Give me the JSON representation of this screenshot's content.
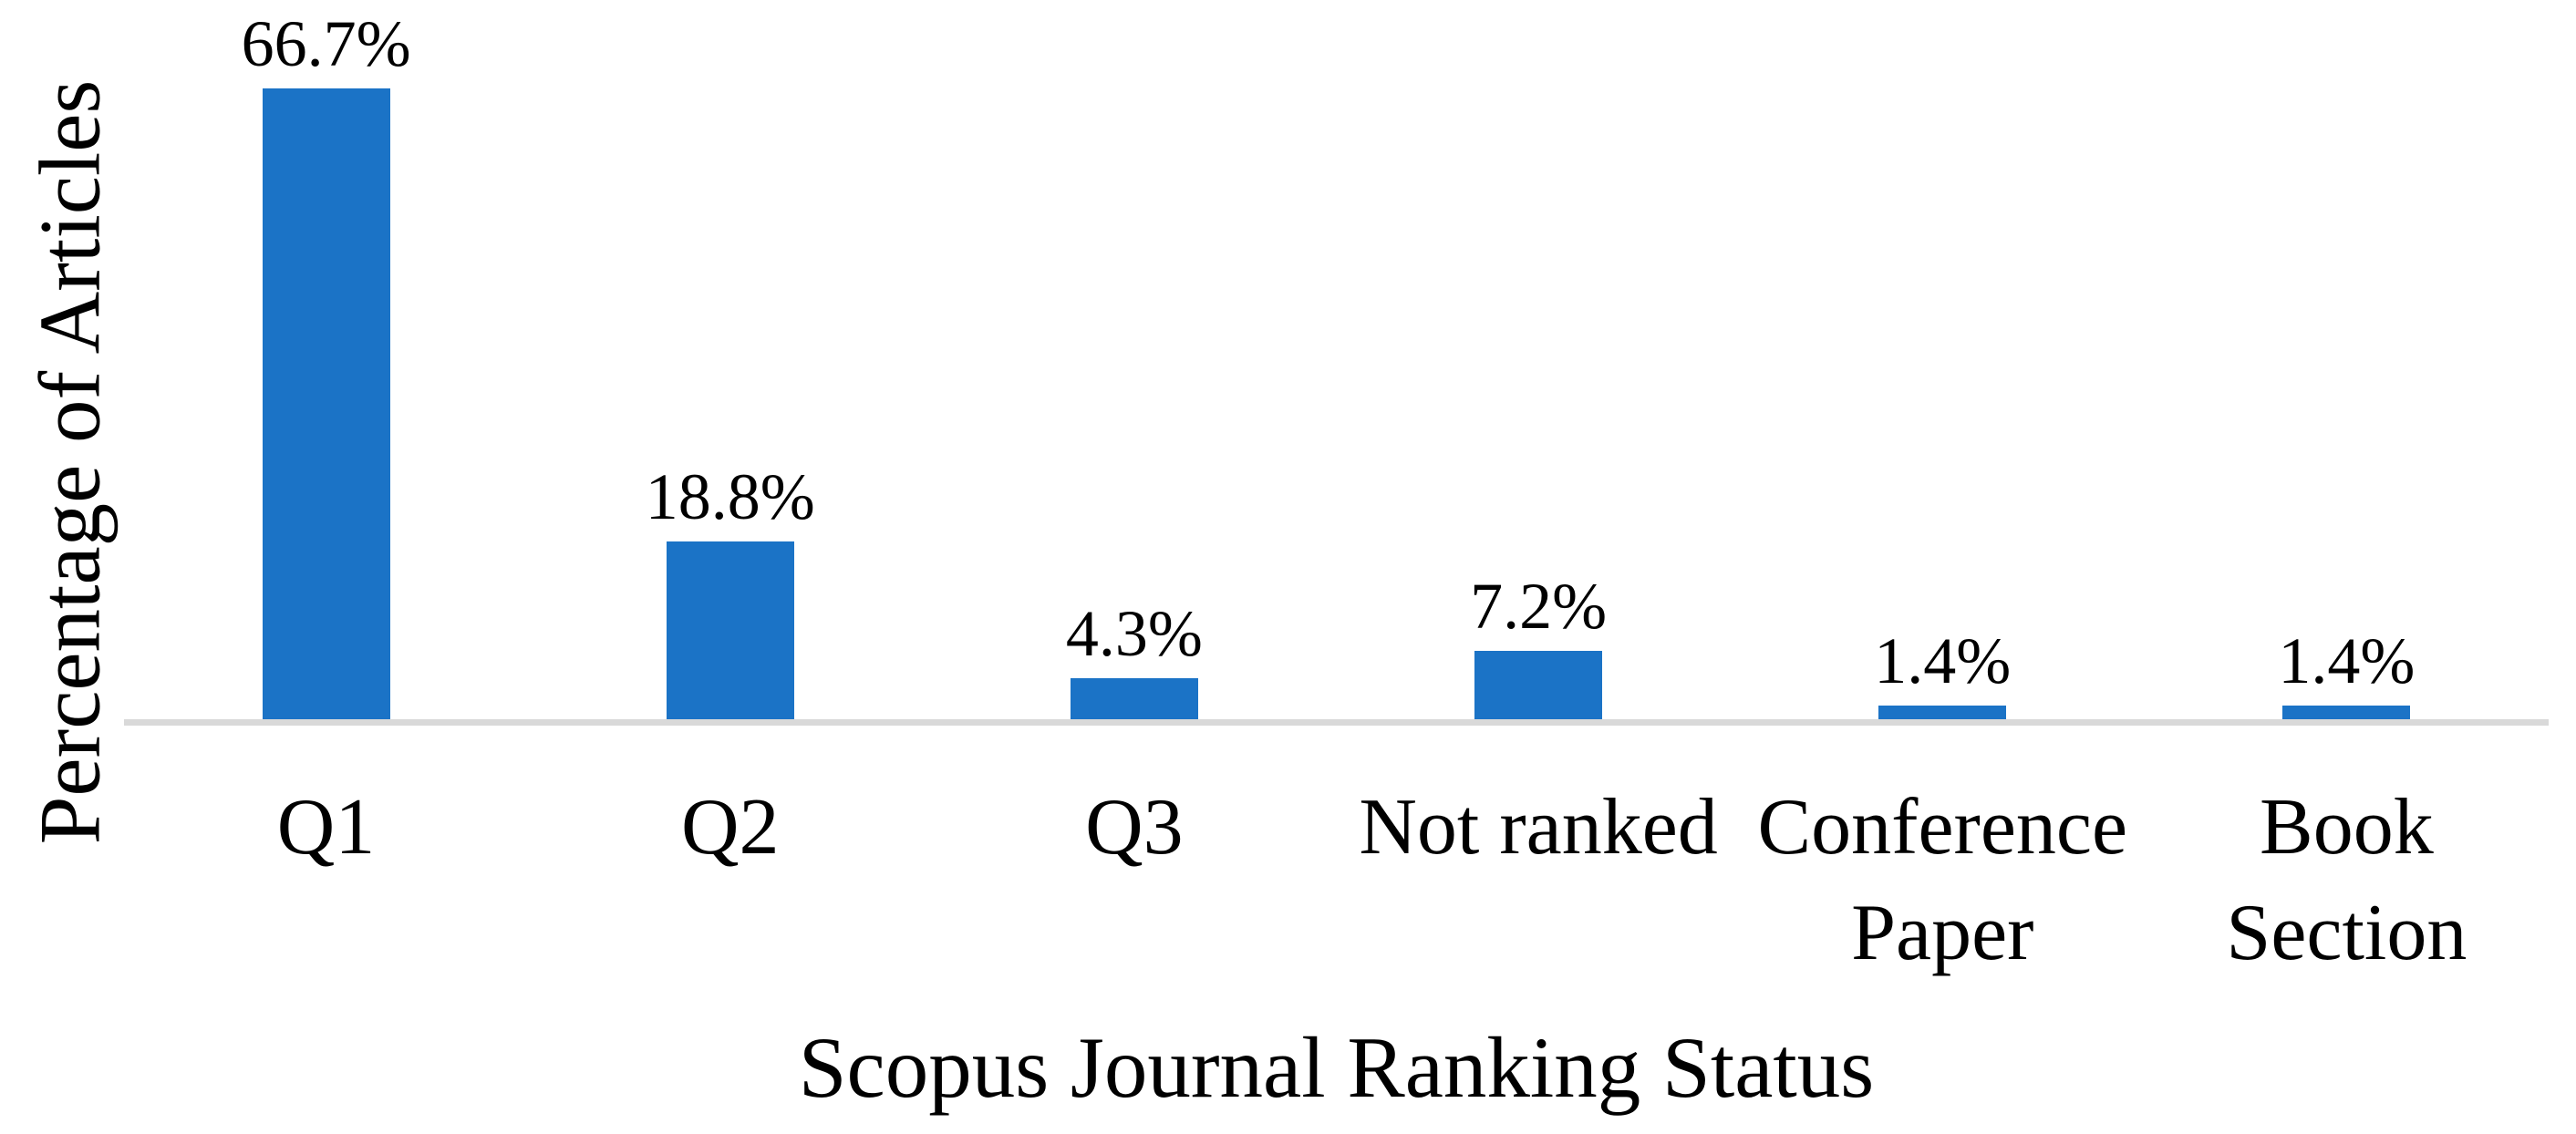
{
  "chart_data": {
    "type": "bar",
    "title": "",
    "categories": [
      "Q1",
      "Q2",
      "Q3",
      "Not ranked",
      "Conference Paper",
      "Book Section"
    ],
    "values": [
      66.7,
      18.8,
      4.3,
      7.2,
      1.4,
      1.4
    ],
    "data_labels": [
      "66.7%",
      "18.8%",
      "4.3%",
      "7.2%",
      "1.4%",
      "1.4%"
    ],
    "xlabel": "Scopus Journal Ranking Status",
    "ylabel": "Percentage of Articles",
    "ylim": [
      0,
      76
    ],
    "grid": false,
    "legend": "none",
    "bar_color": "#1B73C6",
    "axis_line_color": "#D9D9D9",
    "text_color": "#000000",
    "background_color": "#FFFFFF"
  }
}
